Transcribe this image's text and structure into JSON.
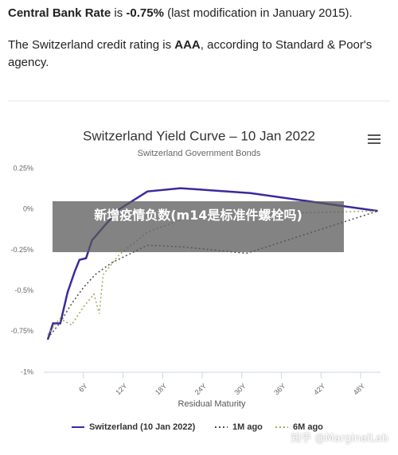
{
  "text": {
    "p1": [
      "Central Bank Rate",
      " is ",
      "-0.75%",
      " (last modification in January 2015)."
    ],
    "p2": [
      "The Switzerland credit rating is ",
      "AAA",
      ", according to Standard & Poor's agency."
    ]
  },
  "overlay": "新增疫情负数(m14是标准件螺栓吗)",
  "watermark": "知乎 @MarginalLab",
  "chart_data": {
    "type": "line",
    "title": "Switzerland Yield Curve – 10 Jan 2022",
    "subtitle": "Switzerland Government Bonds",
    "x_label": "Residual Maturity",
    "xlim": [
      0,
      51
    ],
    "xticks": [
      {
        "value": 6,
        "label": "6Y"
      },
      {
        "value": 12,
        "label": "12Y"
      },
      {
        "value": 18,
        "label": "18Y"
      },
      {
        "value": 24,
        "label": "24Y"
      },
      {
        "value": 30,
        "label": "30Y"
      },
      {
        "value": 36,
        "label": "36Y"
      },
      {
        "value": 42,
        "label": "42Y"
      },
      {
        "value": 48,
        "label": "48Y"
      }
    ],
    "ylim": [
      -1,
      0.25
    ],
    "yticks": [
      {
        "value": 0.25,
        "label": "0.25%"
      },
      {
        "value": 0,
        "label": "0%"
      },
      {
        "value": -0.25,
        "label": "-0.25%"
      },
      {
        "value": -0.5,
        "label": "-0.5%"
      },
      {
        "value": -0.75,
        "label": "-0.75%"
      },
      {
        "value": -1,
        "label": "-1%"
      }
    ],
    "grid": false,
    "series": [
      {
        "name": "Switzerland (10 Jan 2022)",
        "color": "#3b2a9c",
        "dash": "solid",
        "x": [
          0.6,
          1.4,
          2.5,
          3.6,
          4.7,
          5.4,
          6.4,
          7.3,
          9,
          11.4,
          15.7,
          20.7,
          31.3,
          50.6
        ],
        "values": [
          -0.8,
          -0.7,
          -0.7,
          -0.51,
          -0.38,
          -0.31,
          -0.3,
          -0.19,
          -0.11,
          0,
          0.11,
          0.13,
          0.1,
          -0.01
        ]
      },
      {
        "name": "1M ago",
        "color": "#4a4a58",
        "dash": "dotted",
        "x": [
          0.6,
          2.4,
          4.2,
          6,
          7.8,
          10.2,
          15.7,
          21,
          30.7,
          50.6
        ],
        "values": [
          -0.79,
          -0.7,
          -0.58,
          -0.48,
          -0.4,
          -0.33,
          -0.22,
          -0.23,
          -0.27,
          -0.01
        ]
      },
      {
        "name": "6M ago",
        "color": "#a9a45c",
        "dash": "dotted",
        "x": [
          0.6,
          2.4,
          4.2,
          6,
          7.6,
          8.4,
          9,
          11.4,
          15.7,
          21,
          30.7,
          50.6
        ],
        "values": [
          -0.77,
          -0.67,
          -0.71,
          -0.6,
          -0.52,
          -0.64,
          -0.4,
          -0.28,
          -0.14,
          -0.06,
          -0.03,
          -0.01
        ]
      }
    ]
  }
}
